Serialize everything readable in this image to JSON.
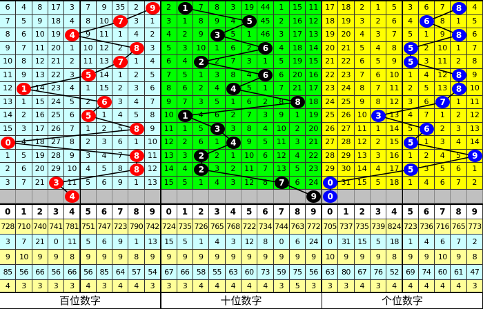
{
  "panels": [
    {
      "id": "hundreds",
      "title": "百位数字",
      "bg": "#ccffff",
      "ball_color": "#ff0000",
      "rows": [
        [
          6,
          4,
          8,
          17,
          3,
          7,
          9,
          35,
          2,
          9
        ],
        [
          7,
          5,
          9,
          18,
          4,
          8,
          10,
          7,
          3,
          1
        ],
        [
          8,
          6,
          10,
          19,
          4,
          9,
          11,
          1,
          4,
          2
        ],
        [
          9,
          7,
          11,
          20,
          1,
          10,
          12,
          2,
          8,
          3
        ],
        [
          10,
          8,
          12,
          21,
          2,
          11,
          13,
          7,
          1,
          4
        ],
        [
          11,
          9,
          13,
          22,
          3,
          5,
          14,
          1,
          2,
          5
        ],
        [
          12,
          1,
          14,
          23,
          4,
          1,
          15,
          2,
          3,
          6
        ],
        [
          13,
          1,
          15,
          24,
          5,
          2,
          6,
          3,
          4,
          7
        ],
        [
          14,
          2,
          16,
          25,
          6,
          5,
          1,
          4,
          5,
          8
        ],
        [
          15,
          3,
          17,
          26,
          7,
          1,
          2,
          5,
          8,
          9
        ],
        [
          0,
          4,
          18,
          27,
          8,
          2,
          3,
          6,
          1,
          10
        ],
        [
          1,
          5,
          19,
          28,
          9,
          3,
          4,
          7,
          8,
          11
        ],
        [
          2,
          6,
          20,
          29,
          10,
          4,
          5,
          8,
          8,
          12
        ],
        [
          3,
          7,
          21,
          3,
          11,
          5,
          6,
          9,
          1,
          13
        ]
      ],
      "hits": [
        9,
        7,
        4,
        8,
        7,
        5,
        1,
        6,
        5,
        8,
        0,
        8,
        8,
        3
      ],
      "next_hit": 4,
      "digits": [
        "0",
        "1",
        "2",
        "3",
        "4",
        "5",
        "6",
        "7",
        "8",
        "9"
      ],
      "stats": [
        [
          728,
          710,
          740,
          741,
          781,
          751,
          747,
          723,
          790,
          742
        ],
        [
          3,
          7,
          21,
          0,
          11,
          5,
          6,
          9,
          1,
          13
        ],
        [
          9,
          10,
          9,
          9,
          8,
          9,
          9,
          9,
          8,
          9
        ],
        [
          85,
          56,
          66,
          56,
          66,
          56,
          85,
          64,
          57,
          54
        ],
        [
          4,
          3,
          3,
          3,
          3,
          4,
          3,
          4,
          4,
          3
        ]
      ]
    },
    {
      "id": "tens",
      "title": "十位数字",
      "bg": "#00ff00",
      "ball_color": "#000000",
      "rows": [
        [
          2,
          1,
          7,
          8,
          3,
          19,
          44,
          1,
          15,
          11
        ],
        [
          3,
          1,
          8,
          9,
          4,
          5,
          45,
          2,
          16,
          12
        ],
        [
          4,
          2,
          9,
          3,
          5,
          1,
          46,
          3,
          17,
          13
        ],
        [
          5,
          3,
          10,
          1,
          6,
          2,
          6,
          4,
          18,
          14
        ],
        [
          6,
          4,
          2,
          2,
          7,
          3,
          1,
          5,
          19,
          15
        ],
        [
          7,
          5,
          1,
          3,
          8,
          4,
          6,
          6,
          20,
          16
        ],
        [
          8,
          6,
          2,
          4,
          4,
          5,
          1,
          7,
          21,
          17
        ],
        [
          9,
          7,
          3,
          5,
          1,
          6,
          2,
          8,
          8,
          18
        ],
        [
          10,
          1,
          4,
          6,
          2,
          7,
          3,
          9,
          1,
          19
        ],
        [
          11,
          1,
          5,
          3,
          3,
          8,
          4,
          10,
          2,
          20
        ],
        [
          12,
          2,
          6,
          1,
          4,
          9,
          5,
          11,
          3,
          21
        ],
        [
          13,
          3,
          2,
          2,
          1,
          10,
          6,
          12,
          4,
          22
        ],
        [
          14,
          4,
          2,
          3,
          2,
          11,
          7,
          13,
          5,
          23
        ],
        [
          15,
          5,
          1,
          4,
          3,
          12,
          8,
          7,
          6,
          24
        ]
      ],
      "hits": [
        1,
        5,
        3,
        6,
        2,
        6,
        4,
        8,
        1,
        3,
        4,
        2,
        2,
        7
      ],
      "next_hit": 9,
      "digits": [
        "0",
        "1",
        "2",
        "3",
        "4",
        "5",
        "6",
        "7",
        "8",
        "9"
      ],
      "stats": [
        [
          724,
          735,
          726,
          765,
          768,
          722,
          734,
          744,
          763,
          772
        ],
        [
          15,
          5,
          1,
          4,
          3,
          12,
          8,
          0,
          6,
          24
        ],
        [
          9,
          9,
          9,
          9,
          9,
          9,
          9,
          9,
          9,
          9
        ],
        [
          67,
          66,
          58,
          55,
          63,
          60,
          73,
          59,
          75,
          56
        ],
        [
          3,
          3,
          4,
          4,
          4,
          4,
          4,
          3,
          5,
          3
        ]
      ]
    },
    {
      "id": "units",
      "title": "个位数字",
      "bg": "#ffff00",
      "ball_color": "#0000ff",
      "rows": [
        [
          17,
          18,
          2,
          1,
          5,
          3,
          6,
          7,
          8,
          4
        ],
        [
          18,
          19,
          3,
          2,
          6,
          4,
          6,
          8,
          1,
          5
        ],
        [
          19,
          20,
          4,
          3,
          7,
          5,
          1,
          9,
          8,
          6
        ],
        [
          20,
          21,
          5,
          4,
          8,
          5,
          2,
          10,
          1,
          7
        ],
        [
          21,
          22,
          6,
          5,
          9,
          5,
          3,
          11,
          2,
          8
        ],
        [
          22,
          23,
          7,
          6,
          10,
          1,
          4,
          12,
          8,
          9
        ],
        [
          23,
          24,
          8,
          7,
          11,
          2,
          5,
          13,
          8,
          10
        ],
        [
          24,
          25,
          9,
          8,
          12,
          3,
          6,
          7,
          1,
          11
        ],
        [
          25,
          26,
          10,
          3,
          13,
          4,
          7,
          1,
          2,
          12
        ],
        [
          26,
          27,
          11,
          1,
          14,
          5,
          6,
          2,
          3,
          13
        ],
        [
          27,
          28,
          12,
          2,
          15,
          5,
          1,
          3,
          4,
          14
        ],
        [
          28,
          29,
          13,
          3,
          16,
          1,
          2,
          4,
          5,
          9
        ],
        [
          29,
          30,
          14,
          4,
          17,
          5,
          3,
          5,
          6,
          1
        ],
        [
          0,
          31,
          15,
          5,
          18,
          1,
          4,
          6,
          7,
          2
        ]
      ],
      "hits": [
        8,
        6,
        8,
        5,
        5,
        8,
        8,
        7,
        3,
        6,
        5,
        9,
        5,
        0
      ],
      "next_hit": 0,
      "digits": [
        "0",
        "1",
        "2",
        "3",
        "4",
        "5",
        "6",
        "7",
        "8",
        "9"
      ],
      "stats": [
        [
          705,
          737,
          735,
          739,
          824,
          723,
          736,
          716,
          765,
          773
        ],
        [
          0,
          31,
          15,
          5,
          18,
          1,
          4,
          6,
          7,
          2
        ],
        [
          10,
          9,
          9,
          9,
          8,
          9,
          9,
          10,
          9,
          8
        ],
        [
          63,
          80,
          67,
          76,
          52,
          69,
          74,
          60,
          61,
          47
        ],
        [
          3,
          3,
          4,
          3,
          4,
          4,
          4,
          4,
          4,
          3
        ]
      ]
    }
  ]
}
